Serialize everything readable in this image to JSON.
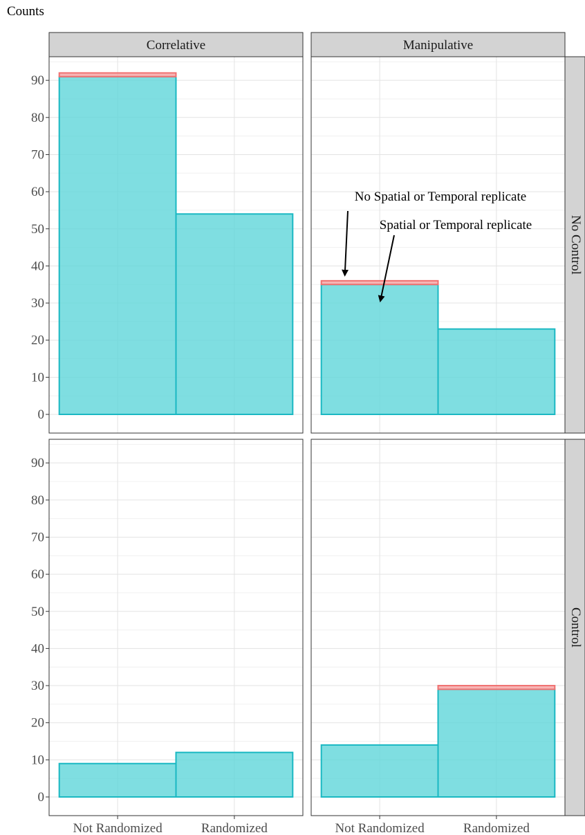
{
  "chart_data": {
    "type": "bar",
    "stacked": true,
    "faceted": true,
    "ylabel": "Counts",
    "xlabel": "",
    "ylim": [
      0,
      96
    ],
    "yticks": [
      0,
      10,
      20,
      30,
      40,
      50,
      60,
      70,
      80,
      90
    ],
    "categories": [
      "Not Randomized",
      "Randomized"
    ],
    "column_facets": [
      "Correlative",
      "Manipulative"
    ],
    "row_facets": [
      "No Control",
      "Control"
    ],
    "series": [
      {
        "name": "Spatial or Temporal replicate",
        "color": "#5fd6d9",
        "stroke": "#1ab8c2"
      },
      {
        "name": "No Spatial or Temporal replicate",
        "color": "#f5a3a3",
        "stroke": "#f07070"
      }
    ],
    "panels": [
      {
        "row": "No Control",
        "col": "Correlative",
        "values": {
          "Spatial or Temporal replicate": [
            91,
            54
          ],
          "No Spatial or Temporal replicate": [
            1,
            0
          ]
        }
      },
      {
        "row": "No Control",
        "col": "Manipulative",
        "values": {
          "Spatial or Temporal replicate": [
            35,
            23
          ],
          "No Spatial or Temporal replicate": [
            1,
            0
          ]
        }
      },
      {
        "row": "Control",
        "col": "Correlative",
        "values": {
          "Spatial or Temporal replicate": [
            9,
            12
          ],
          "No Spatial or Temporal replicate": [
            0,
            0
          ]
        }
      },
      {
        "row": "Control",
        "col": "Manipulative",
        "values": {
          "Spatial or Temporal replicate": [
            14,
            29
          ],
          "No Spatial or Temporal replicate": [
            0,
            1
          ]
        }
      }
    ],
    "annotations": [
      {
        "text": "No Spatial or Temporal replicate",
        "panel": "No Control/Manipulative",
        "points_to": "No Spatial or Temporal replicate"
      },
      {
        "text": "Spatial or Temporal replicate",
        "panel": "No Control/Manipulative",
        "points_to": "Spatial or Temporal replicate"
      }
    ],
    "grid": true,
    "legend": "none"
  }
}
